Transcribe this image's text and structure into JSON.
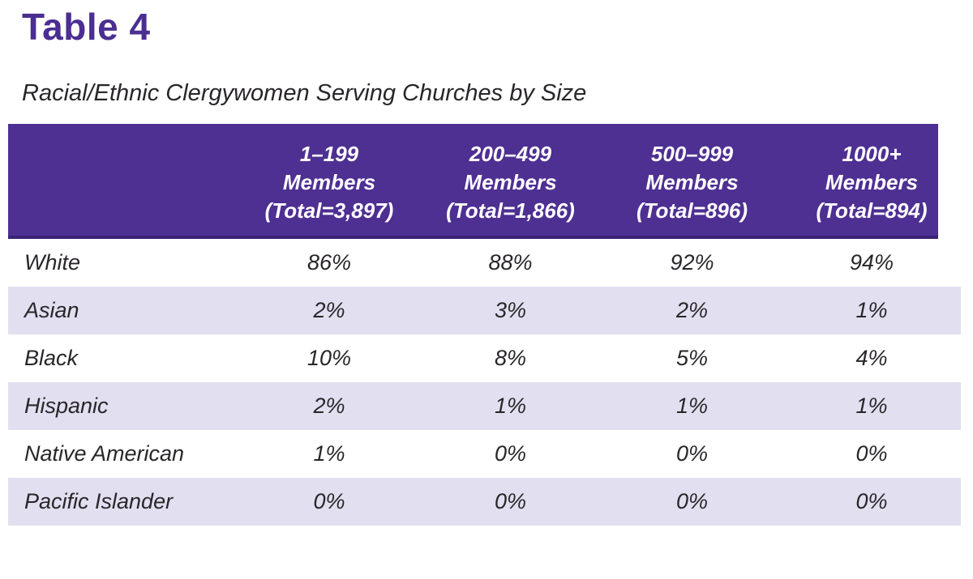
{
  "title": "Table 4",
  "subtitle": "Racial/Ethnic Clergywomen Serving Churches by Size",
  "table": {
    "columns": [
      {
        "range": "1–199",
        "members_label": "Members",
        "total": "(Total=3,897)"
      },
      {
        "range": "200–499",
        "members_label": "Members",
        "total": "(Total=1,866)"
      },
      {
        "range": "500–999",
        "members_label": "Members",
        "total": "(Total=896)"
      },
      {
        "range": "1000+",
        "members_label": "Members",
        "total": "(Total=894)"
      }
    ],
    "rows": [
      {
        "label": "White",
        "values": [
          "86%",
          "88%",
          "92%",
          "94%"
        ]
      },
      {
        "label": "Asian",
        "values": [
          "2%",
          "3%",
          "2%",
          "1%"
        ]
      },
      {
        "label": "Black",
        "values": [
          "10%",
          "8%",
          "5%",
          "4%"
        ]
      },
      {
        "label": "Hispanic",
        "values": [
          "2%",
          "1%",
          "1%",
          "1%"
        ]
      },
      {
        "label": "Native American",
        "values": [
          "1%",
          "0%",
          "0%",
          "0%"
        ]
      },
      {
        "label": "Pacific Islander",
        "values": [
          "0%",
          "0%",
          "0%",
          "0%"
        ]
      }
    ]
  },
  "colors": {
    "header_purple": "#4e2f92",
    "header_bottom_border": "#3a2177",
    "row_lavender": "#e2dff0",
    "title_purple": "#4b2e91",
    "body_text": "#29262a",
    "header_text": "#ffffff"
  }
}
